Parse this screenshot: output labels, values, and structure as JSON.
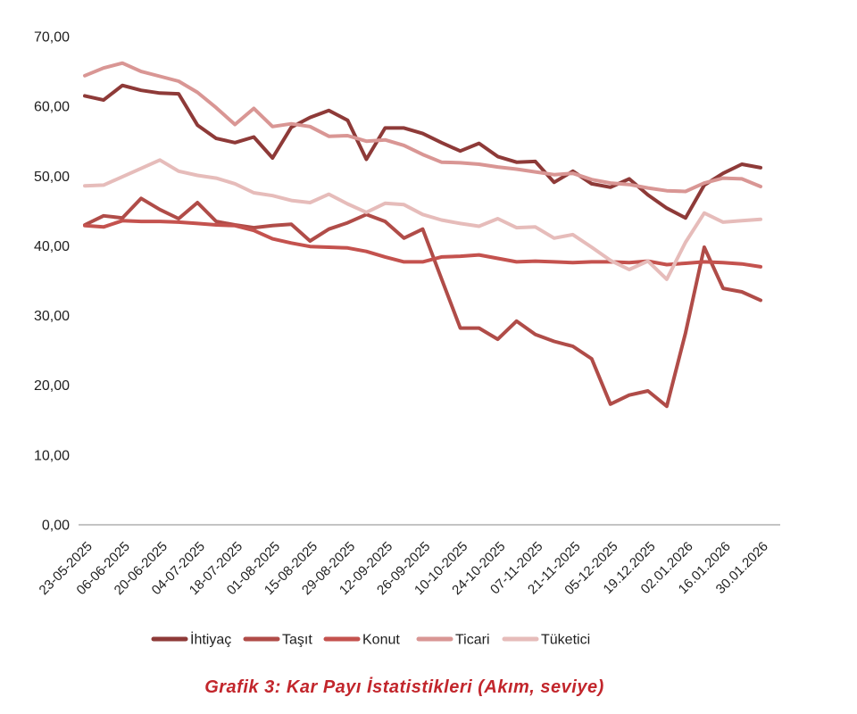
{
  "chart_data": {
    "type": "line",
    "title": "Grafik 3:  Kar  Payı  İstatistikleri  (Akım,  seviye)",
    "title_color": "#c2262c",
    "grid": "off",
    "legend_position": "bottom",
    "ylim": [
      0,
      70
    ],
    "y_tick_labels": [
      "0,00",
      "10,00",
      "20,00",
      "30,00",
      "40,00",
      "50,00",
      "60,00",
      "70,00"
    ],
    "x_tick_labels": [
      "23-05-2025",
      "06-06-2025",
      "20-06-2025",
      "04-07-2025",
      "18-07-2025",
      "01-08-2025",
      "15-08-2025",
      "29-08-2025",
      "12-09-2025",
      "26-09-2025",
      "10-10-2025",
      "24-10-2025",
      "07-11-2025",
      "21-11-2025",
      "05-12-2025",
      "19.12.2025",
      "02.01.2026",
      "16.01.2026",
      "30.01.2026"
    ],
    "points_per_tick": 2,
    "n_points": 37,
    "axis_line_color": "#c4c4c4",
    "series": [
      {
        "name": "İhtiyaç",
        "color": "#8e3a38",
        "values": [
          61.5,
          60.9,
          63.0,
          62.3,
          61.9,
          61.8,
          57.3,
          55.4,
          54.8,
          55.6,
          52.6,
          57.0,
          58.4,
          59.4,
          58.0,
          52.4,
          56.9,
          56.9,
          56.1,
          54.8,
          53.6,
          54.7,
          52.8,
          52.0,
          52.1,
          49.1,
          50.7,
          48.9,
          48.4,
          49.6,
          47.3,
          45.4,
          44.0,
          48.7,
          50.4,
          51.7,
          51.2
        ]
      },
      {
        "name": "Taşıt",
        "color": "#b04c48",
        "values": [
          43.0,
          44.3,
          44.0,
          46.8,
          45.2,
          43.9,
          46.2,
          43.5,
          43.0,
          42.6,
          42.9,
          43.1,
          40.7,
          42.4,
          43.3,
          44.5,
          43.5,
          41.1,
          42.4,
          35.3,
          28.2,
          28.2,
          26.6,
          29.2,
          27.3,
          26.3,
          25.6,
          23.8,
          17.3,
          18.6,
          19.2,
          17.0,
          27.5,
          39.8,
          33.9,
          33.4,
          32.2
        ]
      },
      {
        "name": "Konut",
        "color": "#c4524e",
        "values": [
          42.9,
          42.7,
          43.6,
          43.5,
          43.5,
          43.4,
          43.2,
          43.0,
          42.9,
          42.2,
          41.0,
          40.4,
          39.9,
          39.8,
          39.7,
          39.2,
          38.4,
          37.7,
          37.7,
          38.4,
          38.5,
          38.7,
          38.2,
          37.7,
          37.8,
          37.7,
          37.6,
          37.7,
          37.7,
          37.6,
          37.8,
          37.3,
          37.5,
          37.7,
          37.6,
          37.4,
          37.0
        ]
      },
      {
        "name": "Ticari",
        "color": "#d99694",
        "values": [
          64.4,
          65.5,
          66.2,
          65.0,
          64.3,
          63.6,
          62.0,
          59.8,
          57.4,
          59.7,
          57.1,
          57.5,
          57.1,
          55.7,
          55.8,
          55.0,
          55.2,
          54.4,
          53.1,
          52.0,
          51.9,
          51.7,
          51.3,
          51.0,
          50.6,
          50.2,
          50.4,
          49.5,
          49.0,
          48.8,
          48.3,
          47.9,
          47.8,
          49.0,
          49.7,
          49.6,
          48.5
        ]
      },
      {
        "name": "Tüketici",
        "color": "#e6bcba",
        "values": [
          48.6,
          48.7,
          49.9,
          51.1,
          52.3,
          50.7,
          50.1,
          49.7,
          48.9,
          47.6,
          47.2,
          46.5,
          46.2,
          47.4,
          46.0,
          44.8,
          46.1,
          45.9,
          44.5,
          43.7,
          43.2,
          42.8,
          43.9,
          42.6,
          42.7,
          41.1,
          41.6,
          39.8,
          37.9,
          36.6,
          37.8,
          35.2,
          40.5,
          44.7,
          43.4,
          43.6,
          43.8
        ]
      }
    ]
  }
}
